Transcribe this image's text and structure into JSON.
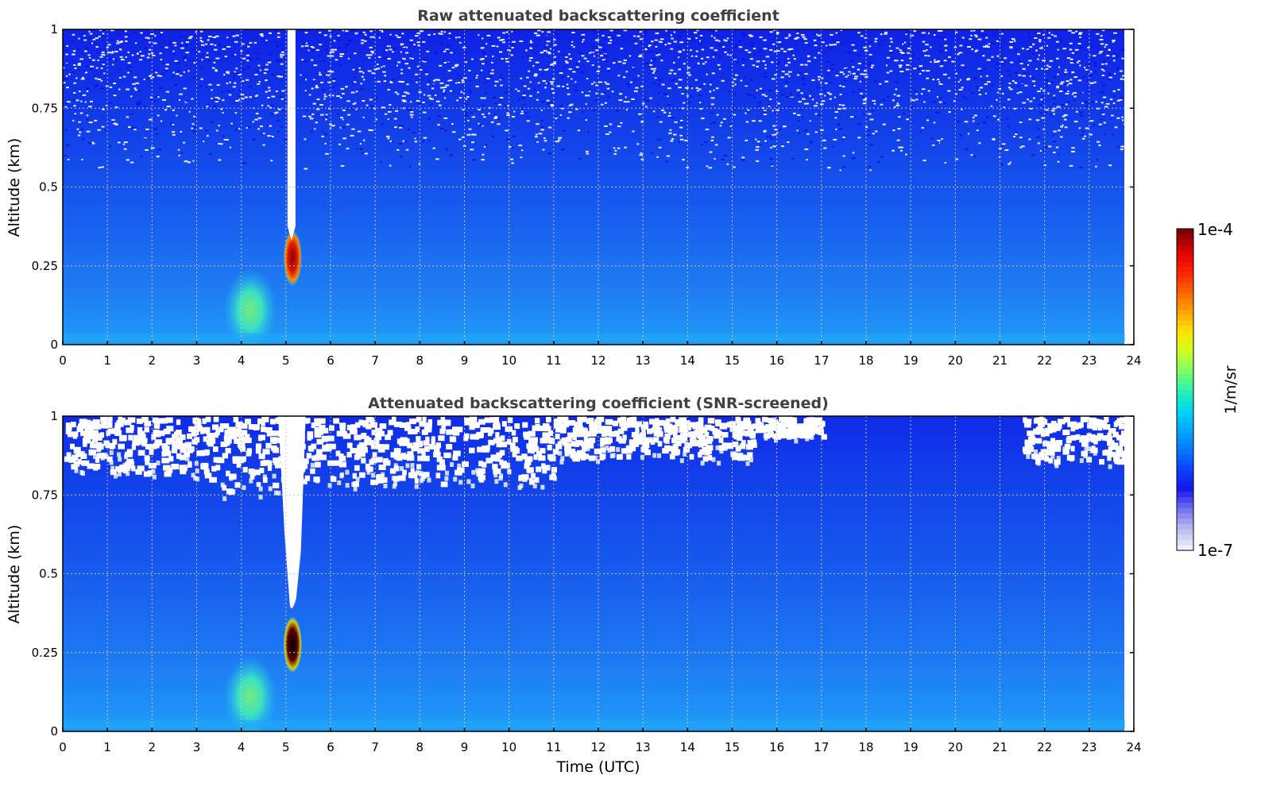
{
  "chart_data": [
    {
      "type": "heatmap",
      "title": "Raw attenuated backscattering coefficient",
      "xlabel": "",
      "ylabel": "Altitude (km)",
      "xlim": [
        0,
        24
      ],
      "ylim": [
        0,
        1
      ],
      "xticks": [
        "0",
        "1",
        "2",
        "3",
        "4",
        "5",
        "6",
        "7",
        "8",
        "9",
        "10",
        "11",
        "12",
        "13",
        "14",
        "15",
        "16",
        "17",
        "18",
        "19",
        "20",
        "21",
        "22",
        "23",
        "24"
      ],
      "yticks": [
        "0",
        "0.25",
        "0.5",
        "0.75",
        "1"
      ],
      "grid": true,
      "data_end_time": 23.8,
      "features": [
        {
          "time": [
            5.0,
            5.3
          ],
          "altitude": [
            0.2,
            0.35
          ],
          "level": "1e-4"
        },
        {
          "time": [
            3.8,
            4.6
          ],
          "altitude": [
            0.05,
            0.17
          ],
          "level": "~1e-5"
        },
        {
          "time": [
            5.0,
            5.25
          ],
          "altitude": [
            0.35,
            1.0
          ],
          "level": "missing (attenuated)"
        }
      ]
    },
    {
      "type": "heatmap",
      "title": "Attenuated backscattering coefficient (SNR-screened)",
      "xlabel": "Time (UTC)",
      "ylabel": "Altitude (km)",
      "xlim": [
        0,
        24
      ],
      "ylim": [
        0,
        1
      ],
      "xticks": [
        "0",
        "1",
        "2",
        "3",
        "4",
        "5",
        "6",
        "7",
        "8",
        "9",
        "10",
        "11",
        "12",
        "13",
        "14",
        "15",
        "16",
        "17",
        "18",
        "19",
        "20",
        "21",
        "22",
        "23",
        "24"
      ],
      "yticks": [
        "0",
        "0.25",
        "0.5",
        "0.75",
        "1"
      ],
      "grid": true,
      "data_end_time": 23.8,
      "features": [
        {
          "time": [
            5.0,
            5.3
          ],
          "altitude": [
            0.2,
            0.35
          ],
          "level": "1e-4"
        },
        {
          "time": [
            3.8,
            4.6
          ],
          "altitude": [
            0.05,
            0.17
          ],
          "level": "~1e-5"
        },
        {
          "time": [
            4.9,
            5.3
          ],
          "altitude": [
            0.37,
            1.0
          ],
          "level": "screened out"
        }
      ]
    }
  ],
  "colorbar": {
    "max_label": "1e-4",
    "min_label": "1e-7",
    "unit_label": "1/m/sr",
    "colors": [
      "#eeeeff",
      "#b8b8f0",
      "#6f6ff0",
      "#1515ee",
      "#0a44ff",
      "#0a7aff",
      "#00aaff",
      "#00d8ee",
      "#30f0b0",
      "#80ff60",
      "#d0ff20",
      "#ffe000",
      "#ffa000",
      "#ff6000",
      "#ff2000",
      "#dd0000",
      "#800000"
    ]
  },
  "colors": {
    "title_color": "#404040",
    "background_blue": "#1f5fe8",
    "grid_color": "#c8c8c8"
  }
}
